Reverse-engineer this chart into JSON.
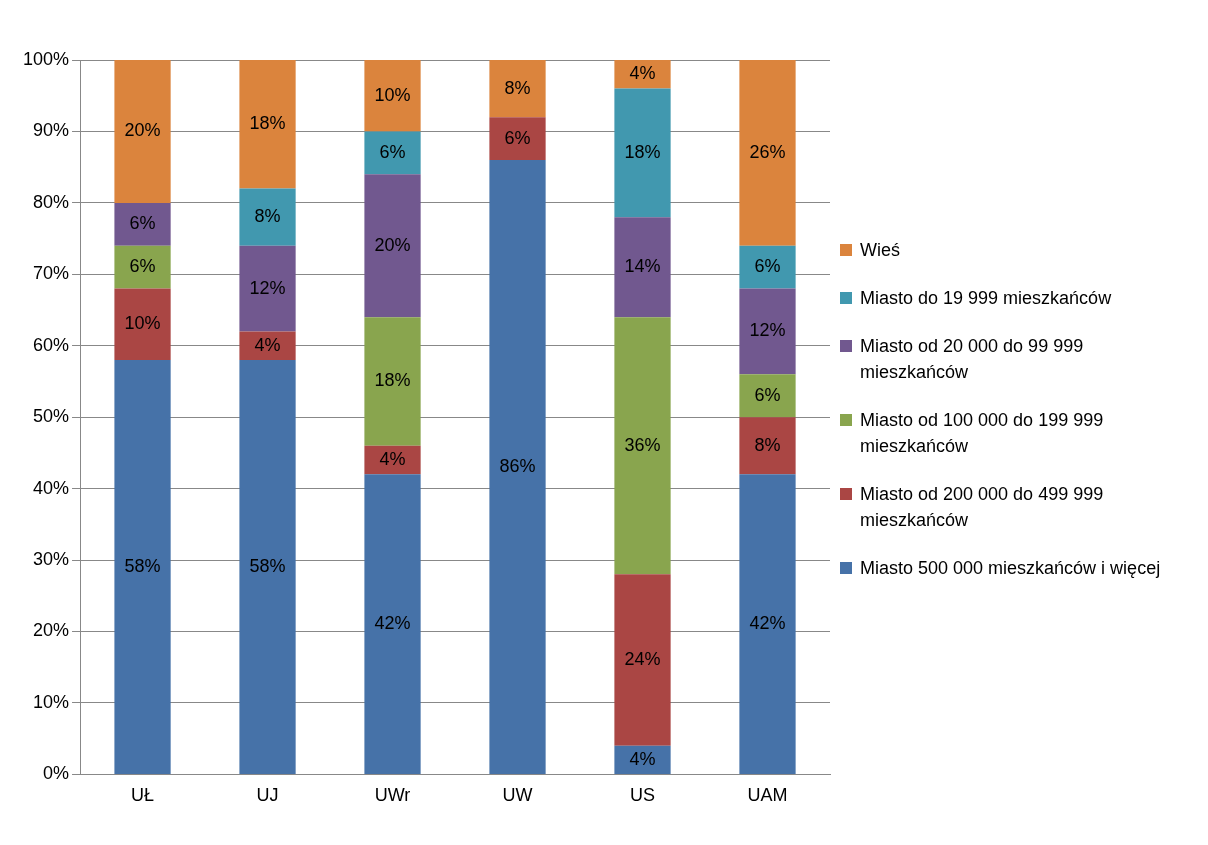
{
  "chart_data": {
    "type": "bar",
    "stacked": true,
    "categories": [
      "UŁ",
      "UJ",
      "UWr",
      "UW",
      "US",
      "UAM"
    ],
    "ylim": [
      0,
      100
    ],
    "yticks": [
      {
        "value": 0,
        "label": "0%"
      },
      {
        "value": 10,
        "label": "10%"
      },
      {
        "value": 20,
        "label": "20%"
      },
      {
        "value": 30,
        "label": "30%"
      },
      {
        "value": 40,
        "label": "40%"
      },
      {
        "value": 50,
        "label": "50%"
      },
      {
        "value": 60,
        "label": "60%"
      },
      {
        "value": 70,
        "label": "70%"
      },
      {
        "value": 80,
        "label": "80%"
      },
      {
        "value": 90,
        "label": "90%"
      },
      {
        "value": 100,
        "label": "100%"
      }
    ],
    "grid": "y",
    "legend": "right",
    "series": [
      {
        "name": "Miasto 500 000 mieszkańców i więcej",
        "color": "#4672a8",
        "values": [
          58,
          58,
          42,
          86,
          4,
          42
        ],
        "value_labels": [
          "58%",
          "58%",
          "42%",
          "86%",
          "4%",
          "42%"
        ]
      },
      {
        "name": "Miasto od 200 000 do 499 999 mieszkańców",
        "color": "#aa4644",
        "values": [
          10,
          4,
          4,
          6,
          24,
          8
        ],
        "value_labels": [
          "10%",
          "4%",
          "4%",
          "6%",
          "24%",
          "8%"
        ]
      },
      {
        "name": "Miasto od 100 000 do 199 999 mieszkańców",
        "color": "#89a54e",
        "values": [
          6,
          null,
          18,
          null,
          36,
          6
        ],
        "value_labels": [
          "6%",
          null,
          "18%",
          null,
          "36%",
          "6%"
        ]
      },
      {
        "name": "Miasto od 20 000 do 99 999 mieszkańców",
        "color": "#71588f",
        "values": [
          6,
          12,
          20,
          null,
          14,
          12
        ],
        "value_labels": [
          "6%",
          "12%",
          "20%",
          null,
          "14%",
          "12%"
        ]
      },
      {
        "name": "Miasto do 19 999 mieszkańców",
        "color": "#4198af",
        "values": [
          null,
          8,
          6,
          null,
          18,
          6
        ],
        "value_labels": [
          null,
          "8%",
          "6%",
          null,
          "18%",
          "6%"
        ]
      },
      {
        "name": "Wieś",
        "color": "#db843d",
        "values": [
          20,
          18,
          10,
          8,
          4,
          26
        ],
        "value_labels": [
          "20%",
          "18%",
          "10%",
          "8%",
          "4%",
          "26%"
        ]
      }
    ]
  }
}
